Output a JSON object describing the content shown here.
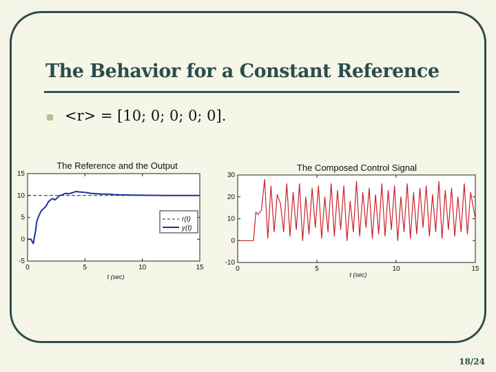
{
  "slide": {
    "title": "The Behavior for a Constant Reference",
    "equation": "<r> = [10; 0; 0; 0; 0].",
    "page_number": "18/24",
    "accent_color": "#2b4d4d"
  },
  "chart_data": [
    {
      "type": "line",
      "title": "The Reference and the Output",
      "xlabel": "t (sec)",
      "ylabel": "",
      "xlim": [
        0,
        15
      ],
      "ylim": [
        -5,
        15
      ],
      "xticks": [
        0,
        5,
        10,
        15
      ],
      "yticks": [
        -5,
        0,
        5,
        10,
        15
      ],
      "grid": false,
      "legend": "right",
      "series": [
        {
          "name": "r(t)",
          "style": "dashed",
          "color": "#222222",
          "x": [
            0,
            15
          ],
          "y": [
            10,
            10
          ]
        },
        {
          "name": "y(t)",
          "style": "solid",
          "color": "#1f2f9e",
          "x": [
            0,
            0.2,
            0.3,
            0.4,
            0.5,
            0.6,
            0.7,
            0.8,
            1.0,
            1.2,
            1.4,
            1.6,
            1.8,
            2.0,
            2.2,
            2.4,
            2.6,
            2.8,
            3.0,
            3.3,
            3.6,
            3.9,
            4.2,
            4.6,
            5.0,
            5.5,
            6.0,
            6.5,
            7.0,
            7.5,
            8.0,
            9.0,
            10.0,
            12.0,
            15.0
          ],
          "y": [
            0,
            0,
            0,
            -0.5,
            -1.0,
            0.5,
            2.0,
            4.0,
            5.5,
            6.5,
            7.0,
            7.5,
            8.5,
            9.0,
            9.3,
            9.0,
            9.5,
            10.0,
            10.1,
            10.5,
            10.4,
            10.6,
            10.9,
            10.8,
            10.7,
            10.5,
            10.4,
            10.3,
            10.3,
            10.2,
            10.15,
            10.1,
            10.05,
            10.0,
            10.0
          ]
        }
      ]
    },
    {
      "type": "line",
      "title": "The Composed Control Signal",
      "xlabel": "t (sec)",
      "ylabel": "",
      "xlim": [
        0,
        15
      ],
      "ylim": [
        -10,
        30
      ],
      "xticks": [
        0,
        5,
        10,
        15
      ],
      "yticks": [
        -10,
        0,
        10,
        20,
        30
      ],
      "grid": false,
      "color": "#c8202a",
      "x": [
        0,
        1,
        1.15,
        1.3,
        1.5,
        1.7,
        1.9,
        2.1,
        2.3,
        2.5,
        2.7,
        2.9,
        3.1,
        3.3,
        3.5,
        3.7,
        3.9,
        4.1,
        4.3,
        4.5,
        4.7,
        4.9,
        5.1,
        5.3,
        5.5,
        5.7,
        5.9,
        6.1,
        6.3,
        6.5,
        6.7,
        6.9,
        7.1,
        7.3,
        7.5,
        7.7,
        7.9,
        8.1,
        8.3,
        8.5,
        8.7,
        8.9,
        9.1,
        9.3,
        9.5,
        9.7,
        9.9,
        10.1,
        10.3,
        10.5,
        10.7,
        10.9,
        11.1,
        11.3,
        11.5,
        11.7,
        11.9,
        12.1,
        12.3,
        12.5,
        12.7,
        12.9,
        13.1,
        13.3,
        13.5,
        13.7,
        13.9,
        14.1,
        14.3,
        14.5,
        14.7,
        15
      ],
      "y": [
        0,
        0,
        13,
        12,
        14,
        28,
        1,
        25,
        4,
        21,
        17,
        4,
        26,
        2,
        22,
        5,
        26,
        0,
        20,
        3,
        24,
        6,
        25,
        1,
        20,
        4,
        26,
        2,
        23,
        5,
        25,
        0,
        18,
        4,
        27,
        2,
        22,
        6,
        24,
        1,
        21,
        3,
        26,
        2,
        23,
        5,
        25,
        0,
        20,
        4,
        26,
        1,
        22,
        3,
        24,
        6,
        25,
        2,
        21,
        4,
        27,
        1,
        23,
        5,
        24,
        2,
        20,
        4,
        26,
        3,
        22,
        10
      ]
    }
  ]
}
